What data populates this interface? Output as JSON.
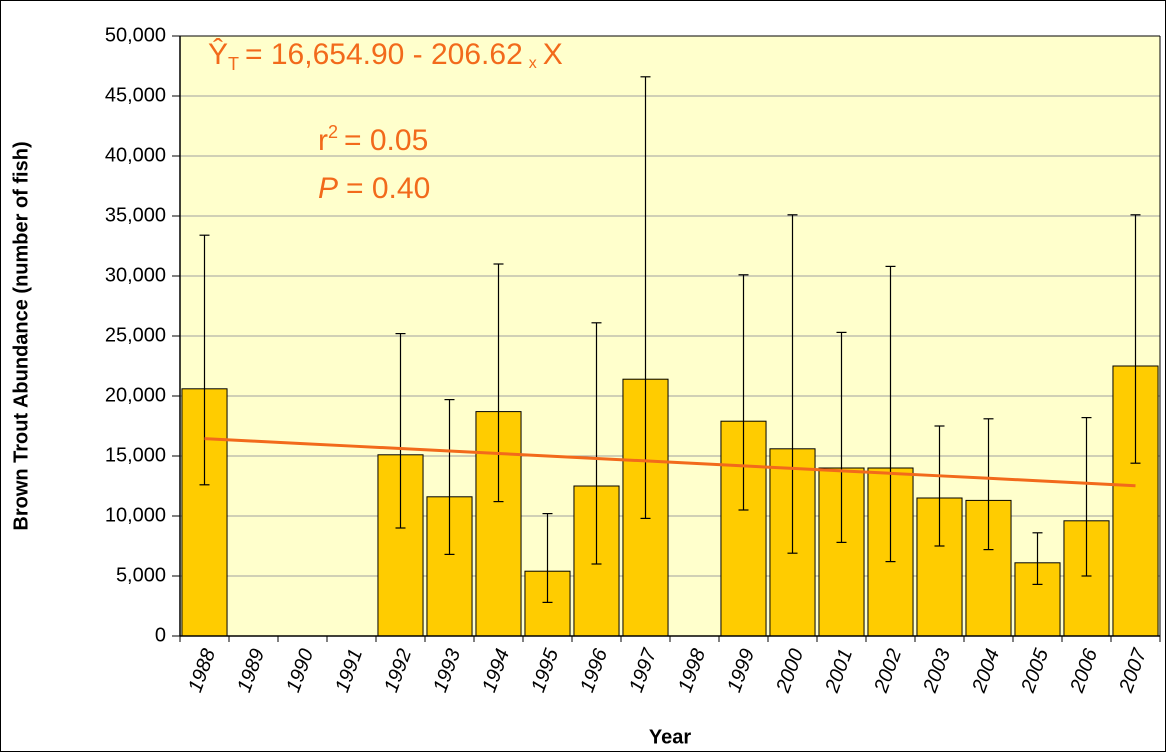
{
  "chart_data": {
    "type": "bar",
    "x_label": "Year",
    "y_label": "Brown Trout Abundance (number of fish)",
    "annotations": {
      "equation": [
        "Ŷ",
        "T",
        "= 16,654.90 - 206.62",
        "x",
        "X"
      ],
      "r_squared": [
        "r",
        "2",
        "= 0.05"
      ],
      "p_value": [
        "P",
        "= 0.40"
      ]
    },
    "categories": [
      "1988",
      "1989",
      "1990",
      "1991",
      "1992",
      "1993",
      "1994",
      "1995",
      "1996",
      "1997",
      "1998",
      "1999",
      "2000",
      "2001",
      "2002",
      "2003",
      "2004",
      "2005",
      "2006",
      "2007"
    ],
    "values": [
      20600,
      null,
      null,
      null,
      15100,
      11600,
      18700,
      5400,
      12500,
      21400,
      null,
      17900,
      15600,
      14000,
      14000,
      11500,
      11300,
      6100,
      9600,
      22500
    ],
    "error_lower": [
      12600,
      null,
      null,
      null,
      9000,
      6800,
      11200,
      2800,
      6000,
      9800,
      null,
      10500,
      6900,
      7800,
      6200,
      7500,
      7200,
      4300,
      5000,
      14400
    ],
    "error_upper": [
      33400,
      null,
      null,
      null,
      25200,
      19700,
      31000,
      10200,
      26100,
      46600,
      null,
      30100,
      35100,
      25300,
      30800,
      17500,
      18100,
      8600,
      18200,
      35100
    ],
    "trend_values": [
      16448,
      16241,
      16035,
      15828,
      15622,
      15415,
      15208,
      15002,
      14795,
      14589,
      14382,
      14175,
      13969,
      13762,
      13556,
      13349,
      13142,
      12936,
      12729,
      12523
    ],
    "color": "#ffcc00",
    "trend_color": "#f26a1b",
    "annotation_color": "#f26a1b",
    "background": "#ffffcc",
    "ylim": [
      0,
      50000
    ],
    "yticks": [
      0,
      {
        "value": 5000,
        "label": "5,000"
      },
      {
        "value": 10000,
        "label": "10,000"
      },
      {
        "value": 15000,
        "label": "15,000"
      },
      {
        "value": 20000,
        "label": "20,000"
      },
      {
        "value": 25000,
        "label": "25,000"
      },
      {
        "value": 30000,
        "label": "30,000"
      },
      {
        "value": 35000,
        "label": "35,000"
      },
      {
        "value": 40000,
        "label": "40,000"
      },
      {
        "value": 45000,
        "label": "45,000"
      },
      {
        "value": 50000,
        "label": "50,000"
      }
    ],
    "grid": true
  }
}
